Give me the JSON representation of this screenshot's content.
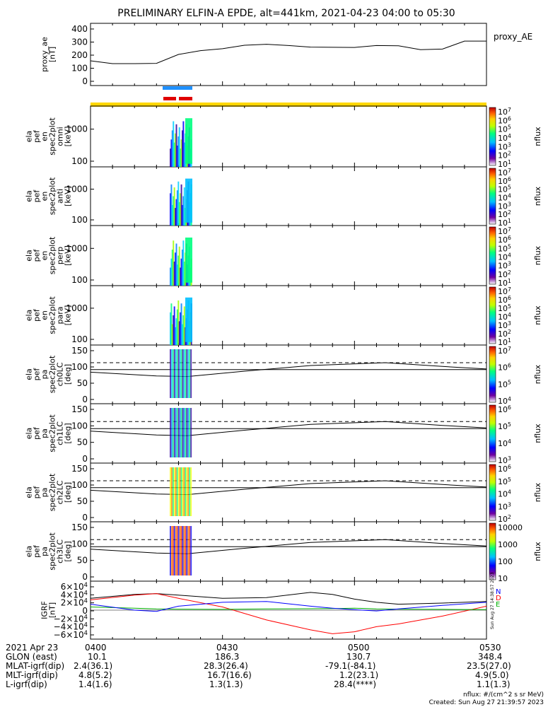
{
  "title": "PRELIMINARY ELFIN-A EPDE, alt=441km, 2021-04-23 04:00 to 05:30",
  "panels": [
    {
      "ylabel": [
        "proxy_ae",
        "[nT]"
      ],
      "yticks": [
        "400",
        "300",
        "200",
        "100",
        "0"
      ],
      "right_label": "proxy_AE"
    },
    {
      "ylabel": [
        "ela",
        "pef",
        "en",
        "spec2plot",
        "omni",
        "[keV]"
      ],
      "yticks": [
        "1000",
        "100"
      ],
      "unit": "nflux",
      "cbar_ticks": [
        "10^7",
        "10^6",
        "10^5",
        "10^4",
        "10^3",
        "10^2",
        "10^1"
      ]
    },
    {
      "ylabel": [
        "ela",
        "pef",
        "en",
        "spec2plot",
        "anti",
        "[keV]"
      ],
      "yticks": [
        "1000",
        "100"
      ],
      "unit": "nflux",
      "cbar_ticks": [
        "10^7",
        "10^6",
        "10^5",
        "10^4",
        "10^3",
        "10^2",
        "10^1"
      ]
    },
    {
      "ylabel": [
        "ela",
        "pef",
        "en",
        "spec2plot",
        "perp",
        "[keV]"
      ],
      "yticks": [
        "1000",
        "100"
      ],
      "unit": "nflux",
      "cbar_ticks": [
        "10^7",
        "10^6",
        "10^5",
        "10^4",
        "10^3",
        "10^2",
        "10^1"
      ]
    },
    {
      "ylabel": [
        "ela",
        "pef",
        "en",
        "spec2plot",
        "para",
        "[keV]"
      ],
      "yticks": [
        "1000",
        "100"
      ],
      "unit": "nflux",
      "cbar_ticks": [
        "10^7",
        "10^6",
        "10^5",
        "10^4",
        "10^3",
        "10^2",
        "10^1"
      ]
    },
    {
      "ylabel": [
        "ela",
        "pef",
        "pa",
        "spec2plot",
        "ch0LC",
        "[deg]"
      ],
      "yticks": [
        "150",
        "100",
        "50",
        "0"
      ],
      "unit": "nflux",
      "cbar_ticks": [
        "10^7",
        "10^6",
        "10^5",
        "10^4"
      ]
    },
    {
      "ylabel": [
        "ela",
        "pef",
        "pa",
        "spec2plot",
        "ch1LC",
        "[deg]"
      ],
      "yticks": [
        "150",
        "100",
        "50",
        "0"
      ],
      "unit": "nflux",
      "cbar_ticks": [
        "10^6",
        "10^5",
        "10^4",
        "10^3"
      ]
    },
    {
      "ylabel": [
        "ela",
        "pef",
        "pa",
        "spec2plot",
        "ch2LC",
        "[deg]"
      ],
      "yticks": [
        "150",
        "100",
        "50",
        "0"
      ],
      "unit": "nflux",
      "cbar_ticks": [
        "10^6",
        "10^5",
        "10^4",
        "10^3",
        "10^2"
      ]
    },
    {
      "ylabel": [
        "ela",
        "pef",
        "pa",
        "spec2plot",
        "ch3LC",
        "[deg]"
      ],
      "yticks": [
        "150",
        "100",
        "50",
        "0"
      ],
      "unit": "nflux",
      "cbar_ticks": [
        "10000",
        "1000",
        "100",
        "10"
      ]
    },
    {
      "ylabel": [
        "IGRF",
        "[nT]"
      ],
      "yticks": [
        "6×10^4",
        "4×10^4",
        "2×10^4",
        "0",
        "−2×10^4",
        "−4×10^4",
        "−6×10^4"
      ],
      "legend": [
        "N",
        "D",
        "E"
      ]
    }
  ],
  "chart_data": [
    {
      "type": "line",
      "panel": "proxy_ae",
      "x": [
        "04:00",
        "04:05",
        "04:10",
        "04:15",
        "04:20",
        "04:25",
        "04:30",
        "04:35",
        "04:40",
        "04:45",
        "04:50",
        "04:55",
        "05:00",
        "05:05",
        "05:10",
        "05:15",
        "05:20",
        "05:25",
        "05:30"
      ],
      "series": [
        {
          "name": "proxy_AE",
          "values": [
            150,
            128,
            128,
            130,
            200,
            230,
            245,
            272,
            280,
            270,
            258,
            256,
            255,
            270,
            268,
            238,
            242,
            305,
            305
          ]
        }
      ],
      "ylabel": "proxy_ae [nT]",
      "ylim": [
        0,
        420
      ]
    },
    {
      "type": "heatmap",
      "panels": [
        "omni",
        "anti",
        "perp",
        "para"
      ],
      "x_range": [
        "04:00",
        "05:30"
      ],
      "ylabel": "[keV]",
      "yscale": "log",
      "ylim": [
        60,
        7000
      ],
      "active_interval": [
        "04:18",
        "04:23"
      ],
      "colorbar": "nflux",
      "colorbar_range": [
        10,
        10000000
      ]
    },
    {
      "type": "heatmap",
      "panels": [
        "ch0LC",
        "ch1LC",
        "ch2LC",
        "ch3LC"
      ],
      "x_range": [
        "04:00",
        "05:30"
      ],
      "ylabel": "[deg]",
      "ylim": [
        0,
        180
      ],
      "overlay_dashed": [
        112,
        112
      ],
      "overlay_loss_cone": {
        "x": [
          "04:00",
          "04:15",
          "04:22",
          "04:35",
          "04:50",
          "05:07",
          "05:20",
          "05:30"
        ],
        "values": [
          82,
          70,
          68,
          85,
          103,
          112,
          100,
          92
        ]
      }
    },
    {
      "type": "line",
      "panel": "IGRF",
      "x": [
        "04:00",
        "04:10",
        "04:15",
        "04:20",
        "04:30",
        "04:40",
        "04:50",
        "04:55",
        "05:00",
        "05:05",
        "05:10",
        "05:20",
        "05:30"
      ],
      "series": [
        {
          "name": "N",
          "color": "#000000",
          "values": [
            30000,
            40000,
            42000,
            38000,
            30000,
            32000,
            45000,
            40000,
            28000,
            20000,
            15000,
            18000,
            22000
          ]
        },
        {
          "name": "D",
          "color": "#ff0000",
          "values": [
            26000,
            38000,
            42000,
            30000,
            8000,
            -25000,
            -50000,
            -60000,
            -55000,
            -42000,
            -35000,
            -15000,
            10000
          ]
        },
        {
          "name": "E",
          "color": "#00b000",
          "values": [
            8000,
            5000,
            3000,
            2500,
            2000,
            3000,
            3500,
            4000,
            5000,
            3000,
            2500,
            2000,
            1500
          ]
        },
        {
          "name": "",
          "color": "#0000ff",
          "values": [
            15000,
            0,
            -3000,
            10000,
            20000,
            22000,
            10000,
            5000,
            1000,
            -2000,
            3000,
            12000,
            20000
          ]
        }
      ],
      "ylabel": "IGRF [nT]",
      "ylim": [
        -70000,
        70000
      ]
    }
  ],
  "footer": {
    "rows": [
      [
        "2021 Apr 23",
        "0400",
        "0430",
        "0500",
        "0530"
      ],
      [
        "GLON (east)",
        "10.1",
        "186.3",
        "130.7",
        "348.4"
      ],
      [
        "MLAT-igrf(dip)",
        "2.4(36.1)",
        "28.3(26.4)",
        "-79.1(-84.1)",
        "23.5(27.0)"
      ],
      [
        "MLT-igrf(dip)",
        "4.8(5.2)",
        "16.7(16.6)",
        "1.2(23.1)",
        "4.9(5.0)"
      ],
      [
        "L-igrf(dip)",
        "1.4(1.6)",
        "1.3(1.3)",
        "28.4(****)",
        "1.1(1.3)"
      ]
    ],
    "note": "nflux: #/(cm^2 s sr MeV)",
    "created": "Created: Sun Aug 27 21:39:57 2023",
    "side_stamp": "Sun Aug 27 14:38:57 2023"
  },
  "bars": {
    "blue": "#1e90ff",
    "red": "#e00000",
    "yellow": "#ffd700"
  }
}
